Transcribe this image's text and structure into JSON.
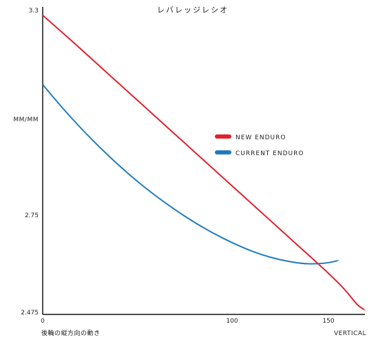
{
  "chart_data": {
    "type": "line",
    "title": "レバレッジレシオ",
    "ylabel": "MM/MM",
    "xlabel": "後輪の縦方向の動き",
    "xlabel_right": "VERTICAL",
    "x_ticks": [
      "0",
      "100",
      "150"
    ],
    "y_ticks": [
      "3.3",
      "2.75",
      "2.475"
    ],
    "xlim": [
      0,
      170
    ],
    "ylim": [
      2.475,
      3.3
    ],
    "grid": false,
    "legend_position": "right-middle",
    "series": [
      {
        "name": "NEW ENDURO",
        "color": "#e2202a",
        "points": [
          [
            0,
            3.29
          ],
          [
            10,
            3.245
          ],
          [
            20,
            3.198
          ],
          [
            30,
            3.151
          ],
          [
            40,
            3.104
          ],
          [
            50,
            3.057
          ],
          [
            60,
            3.01
          ],
          [
            70,
            2.963
          ],
          [
            80,
            2.916
          ],
          [
            90,
            2.869
          ],
          [
            100,
            2.822
          ],
          [
            110,
            2.775
          ],
          [
            120,
            2.728
          ],
          [
            130,
            2.681
          ],
          [
            140,
            2.634
          ],
          [
            150,
            2.587
          ],
          [
            160,
            2.536
          ],
          [
            166,
            2.495
          ],
          [
            170,
            2.482
          ]
        ]
      },
      {
        "name": "CURRENT ENDURO",
        "color": "#1f7bbf",
        "points": [
          [
            0,
            3.1
          ],
          [
            10,
            3.038
          ],
          [
            20,
            2.981
          ],
          [
            30,
            2.928
          ],
          [
            40,
            2.879
          ],
          [
            50,
            2.834
          ],
          [
            60,
            2.793
          ],
          [
            70,
            2.756
          ],
          [
            80,
            2.722
          ],
          [
            90,
            2.692
          ],
          [
            100,
            2.666
          ],
          [
            110,
            2.643
          ],
          [
            120,
            2.626
          ],
          [
            130,
            2.614
          ],
          [
            140,
            2.607
          ],
          [
            150,
            2.61
          ],
          [
            156,
            2.617
          ]
        ]
      }
    ]
  }
}
